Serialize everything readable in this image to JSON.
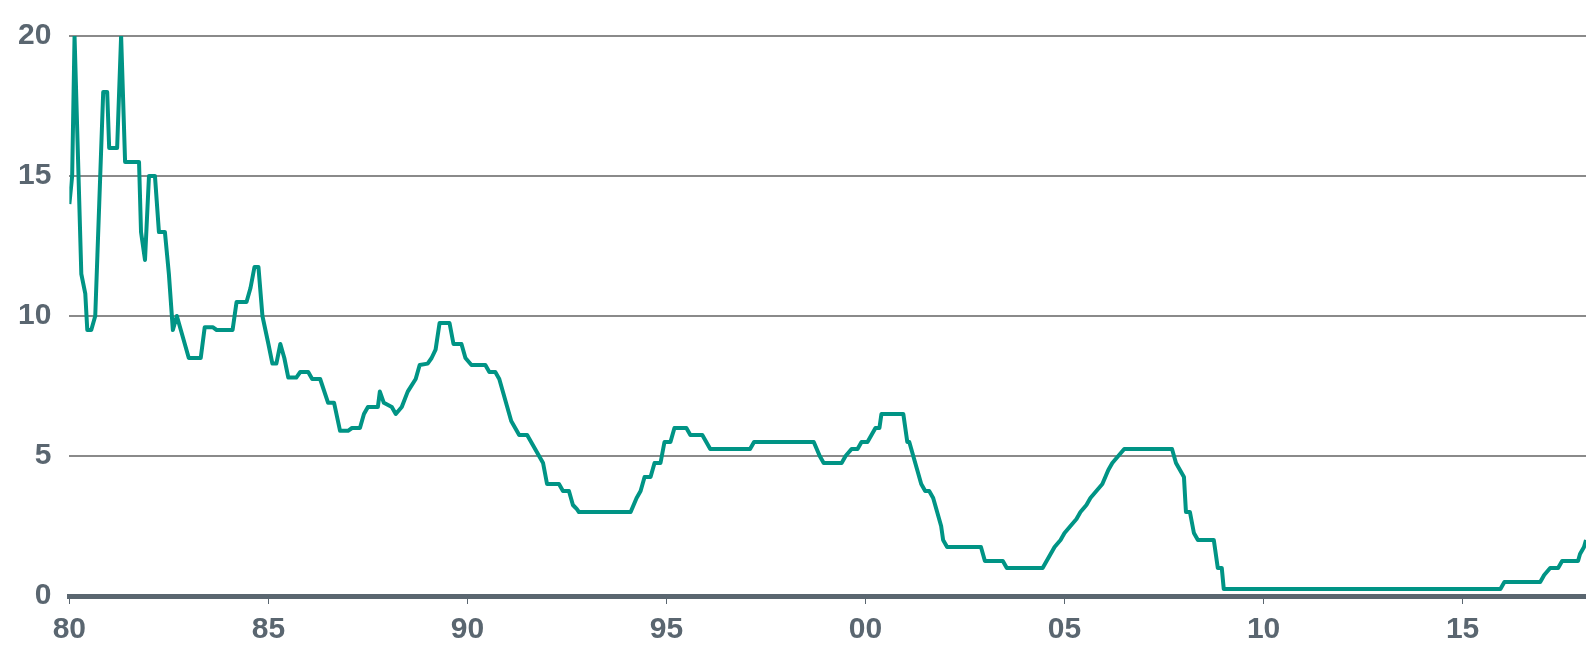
{
  "chart_data": {
    "type": "line",
    "marker": "none",
    "grid": "y",
    "legend": false,
    "color": "#009485",
    "xlim": [
      1980,
      2018.1
    ],
    "xticks": [
      {
        "value": 1980,
        "label": "80"
      },
      {
        "value": 1985,
        "label": "85"
      },
      {
        "value": 1990,
        "label": "90"
      },
      {
        "value": 1995,
        "label": "95"
      },
      {
        "value": 2000,
        "label": "00"
      },
      {
        "value": 2005,
        "label": "05"
      },
      {
        "value": 2010,
        "label": "10"
      },
      {
        "value": 2015,
        "label": "15"
      }
    ],
    "ylim": [
      0,
      20
    ],
    "yticks": [
      0,
      5,
      10,
      15,
      20
    ],
    "x": [
      1980.0,
      1980.07,
      1980.13,
      1980.3,
      1980.4,
      1980.45,
      1980.55,
      1980.65,
      1980.75,
      1980.85,
      1980.95,
      1981.0,
      1981.2,
      1981.3,
      1981.4,
      1981.75,
      1981.8,
      1981.9,
      1982.0,
      1982.15,
      1982.25,
      1982.4,
      1982.5,
      1982.6,
      1982.7,
      1982.8,
      1983.0,
      1983.3,
      1983.4,
      1983.6,
      1983.7,
      1984.1,
      1984.2,
      1984.45,
      1984.55,
      1984.65,
      1984.75,
      1984.85,
      1985.0,
      1985.1,
      1985.2,
      1985.3,
      1985.4,
      1985.5,
      1985.7,
      1985.8,
      1986.0,
      1986.1,
      1986.3,
      1986.5,
      1986.65,
      1986.8,
      1987.0,
      1987.1,
      1987.3,
      1987.4,
      1987.5,
      1987.75,
      1987.8,
      1987.9,
      1988.1,
      1988.2,
      1988.35,
      1988.5,
      1988.7,
      1988.8,
      1989.0,
      1989.1,
      1989.2,
      1989.3,
      1989.55,
      1989.65,
      1989.85,
      1989.95,
      1990.1,
      1990.45,
      1990.55,
      1990.7,
      1990.8,
      1990.9,
      1991.0,
      1991.1,
      1991.3,
      1991.5,
      1991.9,
      1992.0,
      1992.3,
      1992.4,
      1992.55,
      1992.65,
      1992.75,
      1992.8,
      1994.1,
      1994.25,
      1994.35,
      1994.45,
      1994.6,
      1994.7,
      1994.85,
      1994.95,
      1995.1,
      1995.2,
      1995.5,
      1995.6,
      1995.9,
      1996.1,
      1997.1,
      1997.2,
      1998.7,
      1998.85,
      1998.95,
      1999.4,
      1999.5,
      1999.65,
      1999.8,
      1999.9,
      2000.05,
      2000.15,
      2000.25,
      2000.35,
      2000.4,
      2000.95,
      2001.05,
      2001.1,
      2001.2,
      2001.3,
      2001.4,
      2001.5,
      2001.6,
      2001.7,
      2001.8,
      2001.9,
      2001.95,
      2002.05,
      2002.9,
      2003.0,
      2003.45,
      2003.55,
      2004.45,
      2004.55,
      2004.65,
      2004.75,
      2004.9,
      2005.0,
      2005.15,
      2005.3,
      2005.4,
      2005.55,
      2005.65,
      2005.8,
      2005.95,
      2006.1,
      2006.2,
      2006.35,
      2006.5,
      2007.7,
      2007.8,
      2007.9,
      2008.0,
      2008.05,
      2008.15,
      2008.25,
      2008.35,
      2008.75,
      2008.85,
      2008.95,
      2009.0,
      2015.95,
      2016.05,
      2016.95,
      2017.05,
      2017.2,
      2017.4,
      2017.5,
      2017.9,
      2017.95,
      2018.05,
      2018.1
    ],
    "values": [
      14,
      15,
      20,
      11.5,
      10.8,
      9.5,
      9.5,
      10,
      14,
      18,
      18,
      16,
      16,
      20,
      15.5,
      15.5,
      13,
      12,
      15,
      15,
      13,
      13,
      11.5,
      9.5,
      10,
      9.5,
      8.5,
      8.5,
      9.6,
      9.6,
      9.5,
      9.5,
      10.5,
      10.5,
      11,
      11.75,
      11.75,
      10,
      9,
      8.3,
      8.3,
      9,
      8.5,
      7.8,
      7.8,
      8,
      8,
      7.75,
      7.75,
      6.9,
      6.9,
      5.9,
      5.9,
      6,
      6,
      6.5,
      6.75,
      6.75,
      7.3,
      6.9,
      6.75,
      6.5,
      6.75,
      7.3,
      7.75,
      8.25,
      8.3,
      8.5,
      8.8,
      9.75,
      9.75,
      9,
      9,
      8.5,
      8.25,
      8.25,
      8,
      8,
      7.75,
      7.25,
      6.75,
      6.25,
      5.75,
      5.75,
      4.75,
      4,
      4,
      3.75,
      3.75,
      3.25,
      3.1,
      3,
      3,
      3.5,
      3.75,
      4.25,
      4.25,
      4.75,
      4.75,
      5.5,
      5.5,
      6,
      6,
      5.75,
      5.75,
      5.25,
      5.25,
      5.5,
      5.5,
      5,
      4.75,
      4.75,
      5,
      5.25,
      5.25,
      5.5,
      5.5,
      5.75,
      6,
      6,
      6.5,
      6.5,
      5.5,
      5.5,
      5,
      4.5,
      4,
      3.75,
      3.75,
      3.5,
      3,
      2.5,
      2,
      1.75,
      1.75,
      1.25,
      1.25,
      1,
      1,
      1.25,
      1.5,
      1.75,
      2,
      2.25,
      2.5,
      2.75,
      3,
      3.25,
      3.5,
      3.75,
      4,
      4.5,
      4.75,
      5,
      5.25,
      5.25,
      4.75,
      4.5,
      4.25,
      3,
      3,
      2.25,
      2,
      2,
      1,
      1,
      0.25,
      0.25,
      0.5,
      0.5,
      0.75,
      1,
      1,
      1.25,
      1.25,
      1.5,
      1.75,
      2
    ]
  }
}
